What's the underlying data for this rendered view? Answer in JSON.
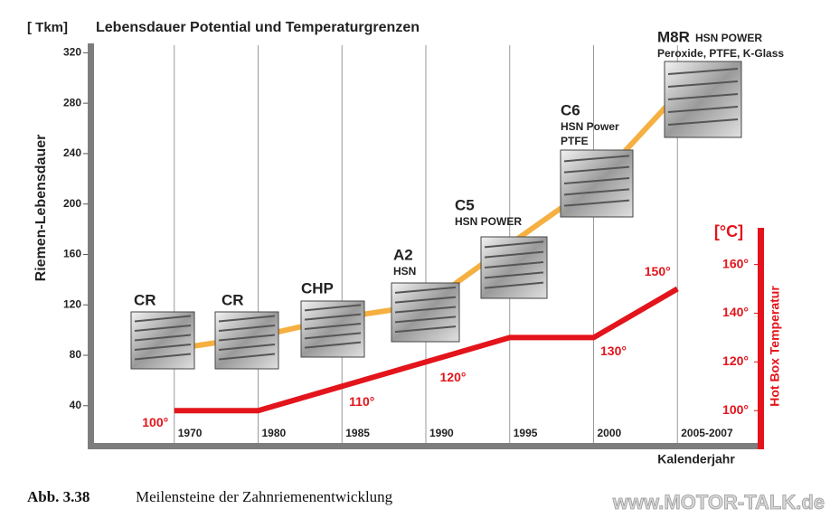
{
  "chart_data": {
    "type": "line",
    "title": "Lebensdauer Potential und Temperaturgrenzen",
    "y_unit": "[ Tkm]",
    "ylabel": "Riemen-Lebensdauer",
    "y2_unit": "[°C]",
    "y2label": "Hot Box Temperatur",
    "xlabel": "Kalenderjahr",
    "categories": [
      null,
      "1970",
      "1980",
      "1985",
      "1990",
      "1995",
      "2000",
      "2005-2007"
    ],
    "series": [
      {
        "color": "#f5b041",
        "values": [
          85,
          95,
          110,
          120,
          168,
          215,
          287,
          null
        ]
      },
      {
        "color": "#e3141b",
        "axis": "y2",
        "values": [
          100,
          100,
          110,
          120,
          130,
          130,
          150,
          null
        ],
        "value_labels": [
          "100°",
          null,
          "110°",
          "120°",
          null,
          "130°",
          "150°",
          null
        ]
      }
    ],
    "ylim": [
      9,
      326
    ],
    "yticks": [
      40,
      80,
      120,
      160,
      200,
      240,
      280,
      320
    ],
    "y2lim": [
      86,
      250
    ],
    "y2ticks": [
      {
        "value": 100,
        "label": "100°"
      },
      {
        "value": 120,
        "label": "120°"
      },
      {
        "value": 140,
        "label": "140°"
      },
      {
        "value": 160,
        "label": "160°"
      }
    ],
    "annotations": [
      {
        "title": "CR"
      },
      {
        "title": "CR"
      },
      {
        "title": "CHP"
      },
      {
        "title": "A2",
        "lines": [
          "HSN"
        ]
      },
      {
        "title": "C5",
        "lines": [
          "HSN POWER"
        ]
      },
      {
        "title": "C6",
        "lines": [
          "HSN Power",
          "PTFE"
        ]
      },
      {
        "title": "M8R",
        "lines": [
          "HSN POWER",
          "Peroxide, PTFE, K-Glass"
        ]
      }
    ]
  },
  "caption": {
    "number": "Abb. 3.38",
    "text": "Meilensteine der Zahnriemenentwicklung"
  },
  "watermark": "www.MOTOR-TALK.de"
}
